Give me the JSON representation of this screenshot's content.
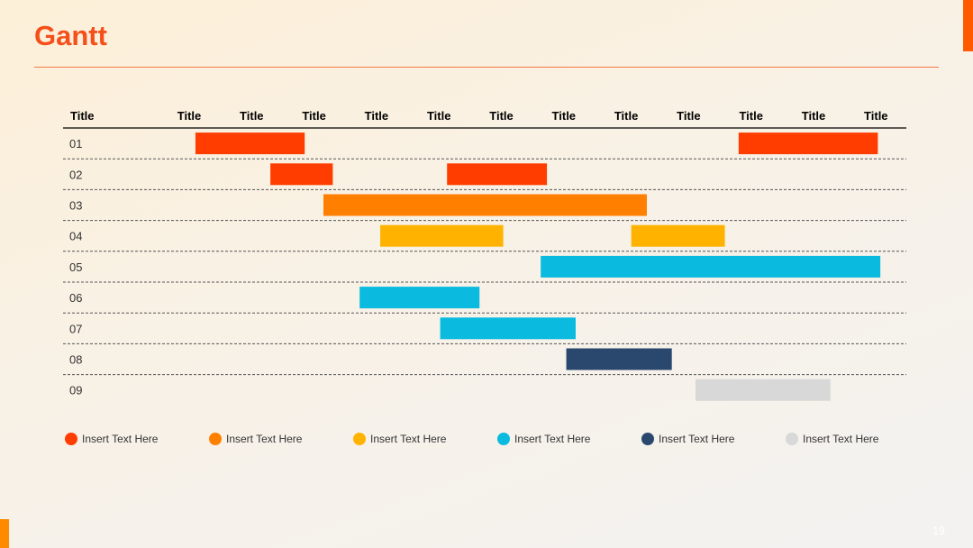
{
  "slide": {
    "title": "Gantt",
    "page_number": "19"
  },
  "colors": {
    "accent": "#ff5a00",
    "red": "#ff3d00",
    "orange": "#ff8000",
    "yellow": "#ffb300",
    "cyan": "#0abbdf",
    "navy": "#2a486e",
    "gray": "#d8d8d8"
  },
  "chart_data": {
    "type": "bar",
    "subtype": "gantt",
    "row_header": "Title",
    "columns": [
      "Title",
      "Title",
      "Title",
      "Title",
      "Title",
      "Title",
      "Title",
      "Title",
      "Title",
      "Title",
      "Title",
      "Title"
    ],
    "rows": [
      "01",
      "02",
      "03",
      "04",
      "05",
      "06",
      "07",
      "08",
      "09"
    ],
    "tasks": [
      {
        "row": "01",
        "start": 0.1,
        "end": 1.85,
        "color": "#ff3d00"
      },
      {
        "row": "01",
        "start": 8.8,
        "end": 11.03,
        "color": "#ff3d00"
      },
      {
        "row": "02",
        "start": 1.3,
        "end": 2.3,
        "color": "#ff3d00"
      },
      {
        "row": "02",
        "start": 4.13,
        "end": 5.73,
        "color": "#ff3d00"
      },
      {
        "row": "03",
        "start": 2.15,
        "end": 7.33,
        "color": "#ff8000"
      },
      {
        "row": "04",
        "start": 3.06,
        "end": 5.03,
        "color": "#ffb300"
      },
      {
        "row": "04",
        "start": 7.08,
        "end": 8.58,
        "color": "#ffb300"
      },
      {
        "row": "05",
        "start": 5.63,
        "end": 11.07,
        "color": "#0abbdf"
      },
      {
        "row": "06",
        "start": 2.73,
        "end": 4.65,
        "color": "#0abbdf"
      },
      {
        "row": "07",
        "start": 4.02,
        "end": 6.19,
        "color": "#0abbdf"
      },
      {
        "row": "08",
        "start": 6.04,
        "end": 7.73,
        "color": "#2a486e"
      },
      {
        "row": "09",
        "start": 8.11,
        "end": 10.27,
        "color": "#d8d8d8"
      }
    ],
    "legend": [
      {
        "label": "Insert Text Here",
        "color": "#ff3d00"
      },
      {
        "label": "Insert Text Here",
        "color": "#ff8000"
      },
      {
        "label": "Insert Text Here",
        "color": "#ffb300"
      },
      {
        "label": "Insert Text Here",
        "color": "#0abbdf"
      },
      {
        "label": "Insert Text Here",
        "color": "#2a486e"
      },
      {
        "label": "Insert Text Here",
        "color": "#d8d8d8"
      }
    ],
    "legend_position": "bottom",
    "grid": "dashed-row-separators"
  }
}
